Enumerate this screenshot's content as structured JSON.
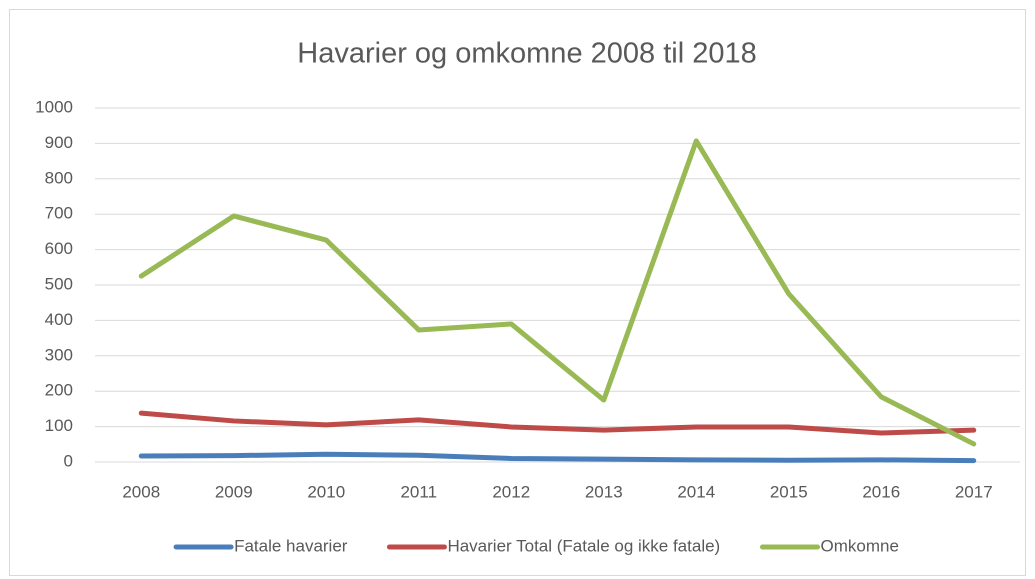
{
  "chart_data": {
    "type": "line",
    "title": "Havarier og omkomne 2008 til 2018",
    "categories": [
      "2008",
      "2009",
      "2010",
      "2011",
      "2012",
      "2013",
      "2014",
      "2015",
      "2016",
      "2017"
    ],
    "series": [
      {
        "name": "Fatale havarier",
        "color": "#4a7ebb",
        "values": [
          17,
          18,
          22,
          19,
          10,
          8,
          6,
          5,
          6,
          4
        ]
      },
      {
        "name": "Havarier Total (Fatale og ikke fatale)",
        "color": "#be4b48",
        "values": [
          138,
          116,
          105,
          119,
          99,
          90,
          99,
          99,
          82,
          90
        ]
      },
      {
        "name": "Omkomne",
        "color": "#98b954",
        "values": [
          525,
          695,
          627,
          373,
          390,
          175,
          907,
          475,
          184,
          51
        ]
      }
    ],
    "ylim": [
      0,
      1000
    ],
    "yticks": [
      0,
      100,
      200,
      300,
      400,
      500,
      600,
      700,
      800,
      900,
      1000
    ],
    "grid": true,
    "legend": "bottom"
  }
}
